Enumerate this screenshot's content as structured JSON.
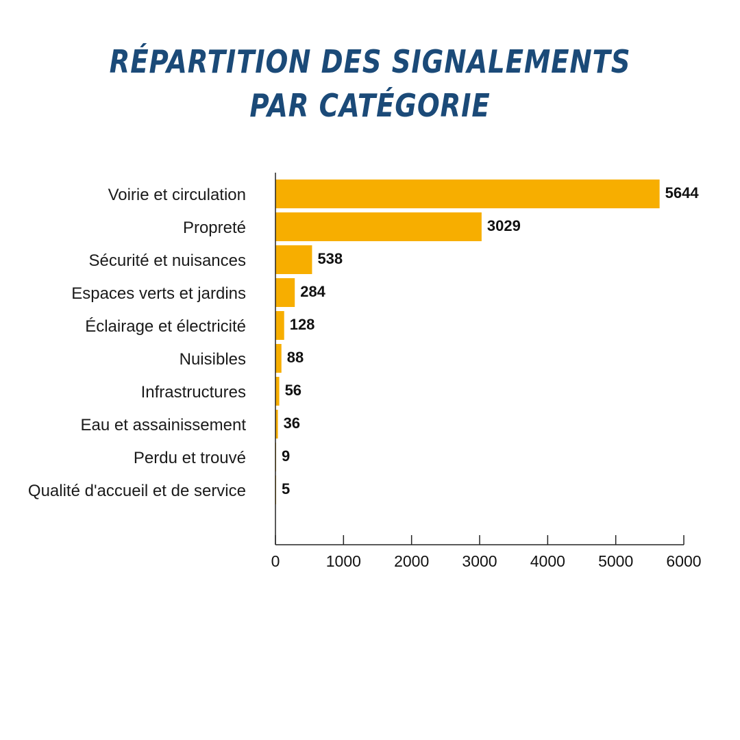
{
  "title": {
    "line1": "RÉPARTITION DES SIGNALEMENTS",
    "line2": "PAR CATÉGORIE"
  },
  "colors": {
    "bar": "#f7ae00",
    "title": "#1b4a78",
    "axis": "#222222"
  },
  "chart_data": {
    "type": "bar",
    "orientation": "horizontal",
    "categories": [
      "Voirie et circulation",
      "Propreté",
      "Sécurité et nuisances",
      "Espaces verts et jardins",
      "Éclairage et électricité",
      "Nuisibles",
      "Infrastructures",
      "Eau et assainissement",
      "Perdu et trouvé",
      "Qualité d'accueil et de service"
    ],
    "values": [
      5644,
      3029,
      538,
      284,
      128,
      88,
      56,
      36,
      9,
      5
    ],
    "value_labels": [
      "5644",
      "3029",
      "538",
      "284",
      "128",
      "88",
      "56",
      "36",
      "9",
      "5"
    ],
    "xlim": [
      0,
      6000
    ],
    "xticks": [
      0,
      1000,
      2000,
      3000,
      4000,
      5000,
      6000
    ],
    "xtick_labels": [
      "0",
      "1000",
      "2000",
      "3000",
      "4000",
      "5000",
      "6000"
    ],
    "grid": false,
    "legend": "none"
  }
}
